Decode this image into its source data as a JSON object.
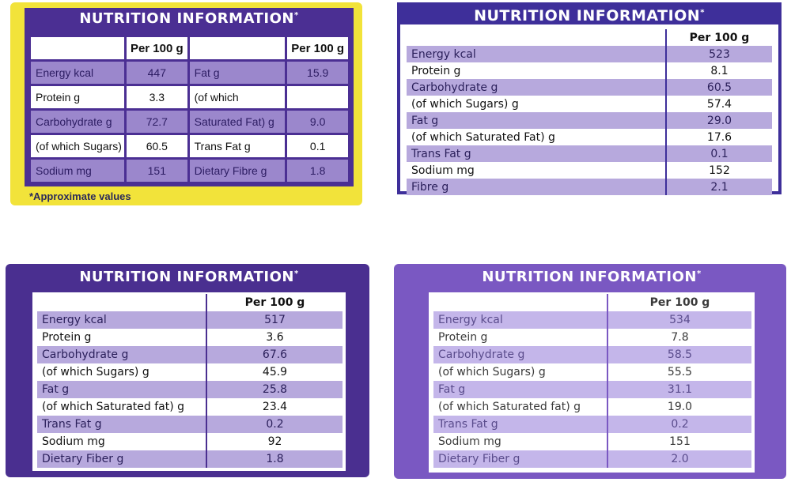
{
  "panels": [
    {
      "title": "NUTRITION INFORMATION",
      "title_mark": "*",
      "header_left": "Per 100 g",
      "header_right": "Per 100 g",
      "rows": [
        {
          "l_label": "Energy kcal",
          "l_value": "447",
          "r_label": "Fat g",
          "r_value": "15.9"
        },
        {
          "l_label": "Protein g",
          "l_value": "3.3",
          "r_label": "(of which",
          "r_value": ""
        },
        {
          "l_label": "Carbohydrate g",
          "l_value": "72.7",
          "r_label": "Saturated Fat) g",
          "r_value": "9.0"
        },
        {
          "l_label": "(of which Sugars) g",
          "l_value": "60.5",
          "r_label": "Trans Fat g",
          "r_value": "0.1"
        },
        {
          "l_label": "Sodium mg",
          "l_value": "151",
          "r_label": "Dietary Fibre g",
          "r_value": "1.8"
        }
      ],
      "note": "*Approximate values"
    },
    {
      "title": "NUTRITION INFORMATION",
      "title_mark": "*",
      "header": "Per 100 g",
      "rows": [
        {
          "label": "Energy kcal",
          "value": "523"
        },
        {
          "label": "Protein g",
          "value": "8.1"
        },
        {
          "label": "Carbohydrate g",
          "value": "60.5"
        },
        {
          "label": "(of which Sugars) g",
          "value": "57.4"
        },
        {
          "label": "Fat g",
          "value": "29.0"
        },
        {
          "label": "(of which Saturated Fat) g",
          "value": "17.6"
        },
        {
          "label": "Trans Fat g",
          "value": "0.1"
        },
        {
          "label": "Sodium mg",
          "value": "152"
        },
        {
          "label": "Fibre g",
          "value": "2.1"
        }
      ]
    },
    {
      "title": "NUTRITION INFORMATION",
      "title_mark": "*",
      "header": "Per 100 g",
      "rows": [
        {
          "label": "Energy kcal",
          "value": "517"
        },
        {
          "label": "Protein g",
          "value": "3.6"
        },
        {
          "label": "Carbohydrate g",
          "value": "67.6"
        },
        {
          "label": "(of which Sugars) g",
          "value": "45.9"
        },
        {
          "label": "Fat g",
          "value": "25.8"
        },
        {
          "label": "(of which Saturated fat) g",
          "value": "23.4"
        },
        {
          "label": "Trans Fat g",
          "value": "0.2"
        },
        {
          "label": "Sodium mg",
          "value": "92"
        },
        {
          "label": "Dietary Fiber g",
          "value": "1.8"
        }
      ]
    },
    {
      "title": "NUTRITION INFORMATION",
      "title_mark": "*",
      "header": "Per 100 g",
      "rows": [
        {
          "label": "Energy kcal",
          "value": "534"
        },
        {
          "label": "Protein g",
          "value": "7.8"
        },
        {
          "label": "Carbohydrate g",
          "value": "58.5"
        },
        {
          "label": "(of which Sugars) g",
          "value": "55.5"
        },
        {
          "label": "Fat g",
          "value": "31.1"
        },
        {
          "label": "(of which Saturated fat) g",
          "value": "19.0"
        },
        {
          "label": "Trans Fat g",
          "value": "0.2"
        },
        {
          "label": "Sodium mg",
          "value": "151"
        },
        {
          "label": "Dietary Fiber g",
          "value": "2.0"
        }
      ]
    }
  ],
  "colors": {
    "purple": "#4b2f93",
    "lavender_row": "#b7a9dd",
    "yellow": "#f2e33a"
  }
}
